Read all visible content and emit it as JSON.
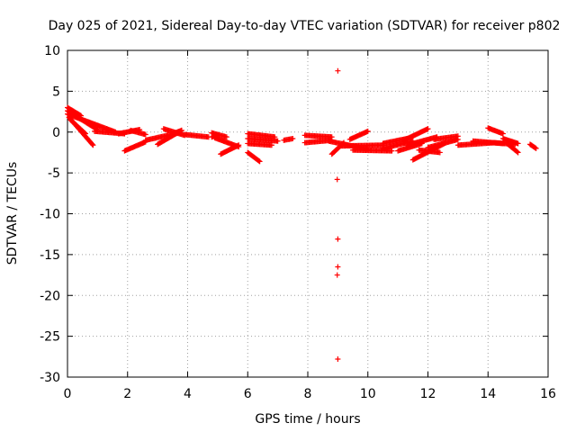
{
  "chart_data": {
    "type": "scatter",
    "title": "Day 025 of 2021, Sidereal Day-to-day VTEC variation (SDTVAR) for receiver p802",
    "xlabel": "GPS time / hours",
    "ylabel": "SDTVAR / TECUs",
    "xlim": [
      0,
      16
    ],
    "ylim": [
      -30,
      10
    ],
    "xticks": [
      "0",
      "2",
      "4",
      "6",
      "8",
      "10",
      "12",
      "14",
      "16"
    ],
    "yticks": [
      "10",
      "5",
      "0",
      "-5",
      "-10",
      "-15",
      "-20",
      "-25",
      "-30"
    ],
    "grid": true,
    "legend": "none",
    "marker": "plus",
    "color": "#ff0000",
    "segments": [
      {
        "x0": 0.0,
        "y0": 3.0,
        "x1": 0.45,
        "y1": 2.0
      },
      {
        "x0": 0.0,
        "y0": 2.6,
        "x1": 1.0,
        "y1": 0.3
      },
      {
        "x0": 0.0,
        "y0": 2.2,
        "x1": 1.6,
        "y1": 0.0
      },
      {
        "x0": 0.05,
        "y0": 1.8,
        "x1": 0.85,
        "y1": -1.6
      },
      {
        "x0": 0.1,
        "y0": 1.5,
        "x1": 0.6,
        "y1": -0.2
      },
      {
        "x0": 0.9,
        "y0": 0.1,
        "x1": 1.9,
        "y1": -0.2
      },
      {
        "x0": 1.9,
        "y0": -2.3,
        "x1": 2.6,
        "y1": -1.2
      },
      {
        "x0": 1.7,
        "y0": -0.2,
        "x1": 2.4,
        "y1": 0.3
      },
      {
        "x0": 2.1,
        "y0": 0.2,
        "x1": 2.6,
        "y1": -0.3
      },
      {
        "x0": 2.6,
        "y0": -1.0,
        "x1": 3.7,
        "y1": -0.1
      },
      {
        "x0": 3.0,
        "y0": -1.5,
        "x1": 3.8,
        "y1": 0.2
      },
      {
        "x0": 3.2,
        "y0": 0.4,
        "x1": 3.9,
        "y1": -0.4
      },
      {
        "x0": 3.5,
        "y0": -0.2,
        "x1": 3.8,
        "y1": 0.2
      },
      {
        "x0": 3.9,
        "y0": -0.3,
        "x1": 4.7,
        "y1": -0.6
      },
      {
        "x0": 4.8,
        "y0": -0.1,
        "x1": 5.3,
        "y1": -0.6
      },
      {
        "x0": 4.8,
        "y0": -0.6,
        "x1": 5.0,
        "y1": -0.4
      },
      {
        "x0": 4.9,
        "y0": -0.7,
        "x1": 5.7,
        "y1": -1.8
      },
      {
        "x0": 5.1,
        "y0": -2.7,
        "x1": 5.7,
        "y1": -1.6
      },
      {
        "x0": 6.0,
        "y0": -0.2,
        "x1": 6.9,
        "y1": -0.6
      },
      {
        "x0": 6.0,
        "y0": -0.8,
        "x1": 7.0,
        "y1": -1.1
      },
      {
        "x0": 6.0,
        "y0": -1.4,
        "x1": 6.8,
        "y1": -1.6
      },
      {
        "x0": 6.0,
        "y0": -2.5,
        "x1": 6.4,
        "y1": -3.6
      },
      {
        "x0": 7.2,
        "y0": -1.0,
        "x1": 7.5,
        "y1": -0.8
      },
      {
        "x0": 7.9,
        "y0": -0.4,
        "x1": 8.8,
        "y1": -0.6
      },
      {
        "x0": 7.9,
        "y0": -1.3,
        "x1": 8.8,
        "y1": -1.0
      },
      {
        "x0": 8.7,
        "y0": -1.1,
        "x1": 10.0,
        "y1": -2.1
      },
      {
        "x0": 8.8,
        "y0": -2.7,
        "x1": 9.2,
        "y1": -1.3
      },
      {
        "x0": 9.1,
        "y0": -1.7,
        "x1": 10.5,
        "y1": -1.6
      },
      {
        "x0": 9.4,
        "y0": -0.9,
        "x1": 10.0,
        "y1": 0.1
      },
      {
        "x0": 9.5,
        "y0": -2.2,
        "x1": 10.8,
        "y1": -2.3
      },
      {
        "x0": 10.5,
        "y0": -1.4,
        "x1": 11.3,
        "y1": -0.8
      },
      {
        "x0": 10.5,
        "y0": -2.0,
        "x1": 11.5,
        "y1": -1.1
      },
      {
        "x0": 11.0,
        "y0": -2.3,
        "x1": 11.8,
        "y1": -1.4
      },
      {
        "x0": 11.2,
        "y0": -1.0,
        "x1": 12.0,
        "y1": 0.4
      },
      {
        "x0": 11.3,
        "y0": -1.6,
        "x1": 12.3,
        "y1": -0.6
      },
      {
        "x0": 11.5,
        "y0": -3.4,
        "x1": 12.6,
        "y1": -1.3
      },
      {
        "x0": 11.7,
        "y0": -2.2,
        "x1": 12.4,
        "y1": -2.5
      },
      {
        "x0": 12.0,
        "y0": -1.9,
        "x1": 13.0,
        "y1": -0.9
      },
      {
        "x0": 12.2,
        "y0": -0.9,
        "x1": 13.0,
        "y1": -0.5
      },
      {
        "x0": 13.0,
        "y0": -1.6,
        "x1": 14.2,
        "y1": -1.3
      },
      {
        "x0": 13.5,
        "y0": -1.1,
        "x1": 14.5,
        "y1": -1.4
      },
      {
        "x0": 14.0,
        "y0": 0.5,
        "x1": 14.5,
        "y1": -0.2
      },
      {
        "x0": 14.5,
        "y0": -0.8,
        "x1": 15.0,
        "y1": -1.4
      },
      {
        "x0": 14.2,
        "y0": -1.3,
        "x1": 14.9,
        "y1": -1.5
      },
      {
        "x0": 14.6,
        "y0": -1.3,
        "x1": 15.0,
        "y1": -2.5
      },
      {
        "x0": 15.4,
        "y0": -1.5,
        "x1": 15.6,
        "y1": -2.0
      }
    ],
    "points": [
      {
        "x": 9.0,
        "y": 7.5
      },
      {
        "x": 8.98,
        "y": -5.8
      },
      {
        "x": 9.0,
        "y": -13.1
      },
      {
        "x": 9.0,
        "y": -16.5
      },
      {
        "x": 8.98,
        "y": -17.5
      },
      {
        "x": 9.0,
        "y": -27.8
      }
    ]
  }
}
